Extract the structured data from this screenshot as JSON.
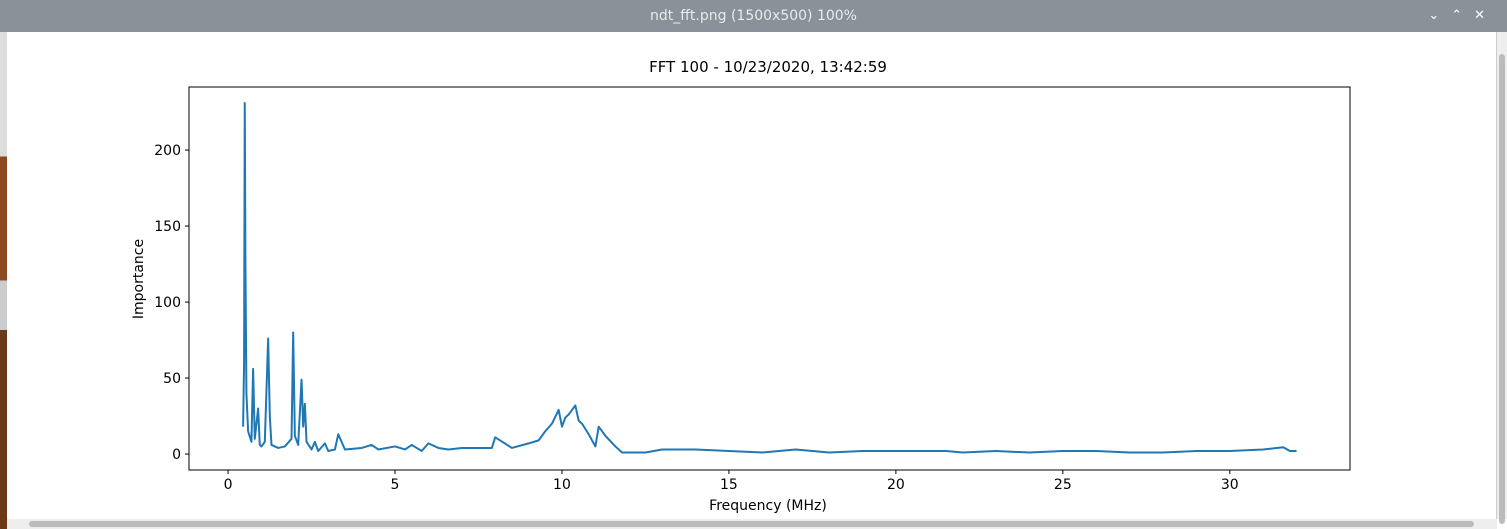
{
  "window": {
    "title": "ndt_fft.png (1500x500) 100%"
  },
  "chart_data": {
    "type": "line",
    "title": "FFT 100 - 10/23/2020, 13:42:59",
    "x_label": "Frequency (MHz)",
    "y_label": "Importance",
    "x": [
      0.45,
      0.48,
      0.5,
      0.52,
      0.55,
      0.6,
      0.7,
      0.75,
      0.8,
      0.9,
      0.95,
      1.0,
      1.1,
      1.2,
      1.25,
      1.3,
      1.5,
      1.7,
      1.9,
      1.95,
      2.0,
      2.1,
      2.2,
      2.25,
      2.3,
      2.35,
      2.5,
      2.6,
      2.7,
      2.9,
      3.0,
      3.2,
      3.3,
      3.5,
      4.0,
      4.3,
      4.5,
      5.0,
      5.3,
      5.5,
      5.8,
      6.0,
      6.3,
      6.6,
      7.0,
      7.5,
      7.9,
      8.0,
      8.5,
      9.0,
      9.3,
      9.5,
      9.7,
      9.9,
      10.0,
      10.1,
      10.2,
      10.4,
      10.5,
      10.6,
      10.8,
      11.0,
      11.1,
      11.3,
      11.6,
      11.8,
      12.5,
      13,
      14,
      15,
      16,
      17,
      18,
      19,
      20,
      21,
      21.5,
      22,
      23,
      24,
      25,
      26,
      27,
      28,
      29,
      30,
      31,
      31.6,
      31.8,
      32
    ],
    "series": [
      {
        "name": "FFT",
        "color": "#1f77b4",
        "values": [
          18,
          60,
          231,
          125,
          40,
          15,
          8,
          56,
          10,
          30,
          6,
          5,
          8,
          76,
          25,
          6,
          4,
          5,
          10,
          80,
          12,
          6,
          49,
          18,
          33,
          8,
          3,
          8,
          2,
          7,
          2,
          3,
          13,
          3,
          4,
          6,
          3,
          5,
          3,
          6,
          2,
          7,
          4,
          3,
          4,
          4,
          4,
          11,
          4,
          7,
          9,
          15,
          20,
          29,
          18,
          24,
          26,
          32,
          22,
          20,
          13,
          5,
          18,
          12,
          5,
          1,
          1,
          3,
          3,
          2,
          1,
          3,
          1,
          2,
          2,
          2,
          2,
          1,
          2,
          1,
          2,
          2,
          1,
          1,
          2,
          2,
          3,
          4.5,
          2,
          2
        ]
      }
    ],
    "xlim": [
      -1.17,
      33.6
    ],
    "ylim": [
      -10.5,
      241.5
    ],
    "xticks": [
      0,
      5,
      10,
      15,
      20,
      25,
      30
    ],
    "yticks": [
      0,
      50,
      100,
      150,
      200
    ]
  }
}
